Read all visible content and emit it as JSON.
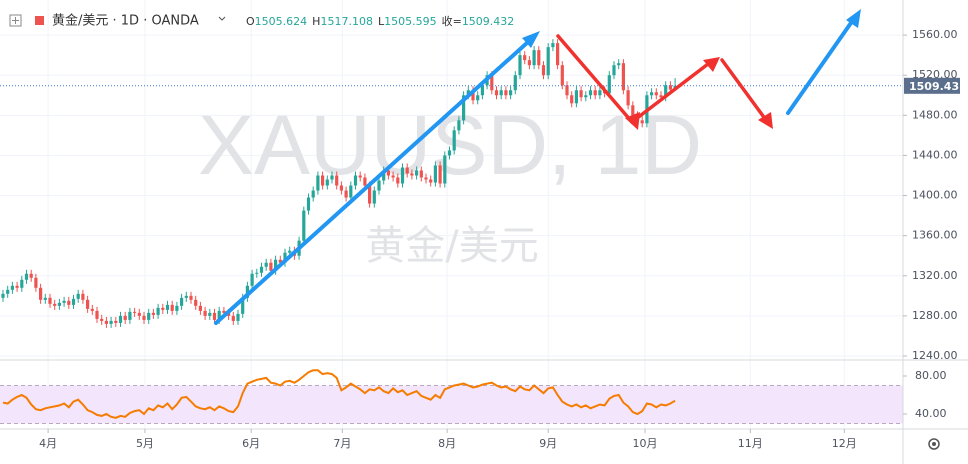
{
  "header": {
    "title": "黄金/美元 · 1D · OANDA"
  },
  "legend": {
    "open_label": "O",
    "high_label": "H",
    "low_label": "L",
    "close_label": "收="
  },
  "watermark": {
    "symbol": "XAUUSD, 1D",
    "name": "黄金/美元"
  },
  "chart_data": [
    {
      "type": "candlestick",
      "up_color": "#26a69a",
      "down_color": "#ef5350",
      "grid": true,
      "xlim": [
        -0.638,
        190.85
      ],
      "xticks": [
        {
          "value": 9.6,
          "label": "4月"
        },
        {
          "value": 30.2,
          "label": "5月"
        },
        {
          "value": 52.8,
          "label": "6月"
        },
        {
          "value": 72.2,
          "label": "7月"
        },
        {
          "value": 94.5,
          "label": "8月"
        },
        {
          "value": 116,
          "label": "9月"
        },
        {
          "value": 136.6,
          "label": "10月"
        },
        {
          "value": 159,
          "label": "11月"
        },
        {
          "value": 179,
          "label": "12月"
        }
      ],
      "ylim": [
        1238,
        1595
      ],
      "yticks": [
        {
          "value": 1240,
          "label": "1240.00"
        },
        {
          "value": 1280,
          "label": "1280.00"
        },
        {
          "value": 1320,
          "label": "1320.00"
        },
        {
          "value": 1360,
          "label": "1360.00"
        },
        {
          "value": 1400,
          "label": "1400.00"
        },
        {
          "value": 1440,
          "label": "1440.00"
        },
        {
          "value": 1480,
          "label": "1480.00"
        },
        {
          "value": 1520,
          "label": "1520.00"
        },
        {
          "value": 1560,
          "label": "1560.00"
        }
      ],
      "open": [
        1298,
        1302,
        1306,
        1310,
        1308,
        1316,
        1322,
        1318,
        1308,
        1296,
        1298,
        1292,
        1290,
        1293,
        1295,
        1291,
        1297,
        1302,
        1296,
        1287,
        1285,
        1277,
        1275,
        1272,
        1275,
        1273,
        1280,
        1276,
        1284,
        1283,
        1280,
        1276,
        1283,
        1281,
        1288,
        1286,
        1291,
        1285,
        1290,
        1298,
        1300,
        1296,
        1290,
        1285,
        1280,
        1283,
        1276,
        1285,
        1283,
        1280,
        1275,
        1282,
        1298,
        1310,
        1322,
        1323,
        1329,
        1333,
        1325,
        1336,
        1333,
        1343,
        1345,
        1340,
        1355,
        1385,
        1398,
        1405,
        1420,
        1410,
        1416,
        1420,
        1410,
        1405,
        1398,
        1410,
        1420,
        1418,
        1410,
        1392,
        1405,
        1415,
        1425,
        1420,
        1418,
        1412,
        1428,
        1422,
        1420,
        1425,
        1418,
        1416,
        1413,
        1430,
        1412,
        1440,
        1445,
        1465,
        1475,
        1500,
        1505,
        1495,
        1500,
        1510,
        1520,
        1505,
        1500,
        1505,
        1500,
        1505,
        1520,
        1540,
        1535,
        1530,
        1545,
        1530,
        1520,
        1548,
        1552,
        1530,
        1510,
        1500,
        1492,
        1505,
        1498,
        1500,
        1505,
        1500,
        1505,
        1502,
        1520,
        1530,
        1532,
        1505,
        1490,
        1480,
        1475,
        1472,
        1500,
        1503,
        1500,
        1498,
        1510,
        1505.624
      ],
      "high": [
        1306,
        1310,
        1314,
        1314,
        1320,
        1326,
        1326,
        1322,
        1312,
        1302,
        1302,
        1296,
        1297,
        1299,
        1299,
        1301,
        1306,
        1306,
        1300,
        1291,
        1289,
        1281,
        1279,
        1279,
        1279,
        1284,
        1284,
        1288,
        1288,
        1287,
        1284,
        1287,
        1287,
        1292,
        1292,
        1295,
        1295,
        1294,
        1302,
        1304,
        1304,
        1300,
        1294,
        1289,
        1287,
        1287,
        1289,
        1289,
        1287,
        1284,
        1286,
        1302,
        1314,
        1326,
        1327,
        1333,
        1337,
        1337,
        1340,
        1340,
        1347,
        1349,
        1349,
        1359,
        1389,
        1402,
        1409,
        1424,
        1424,
        1420,
        1424,
        1424,
        1414,
        1409,
        1414,
        1424,
        1424,
        1422,
        1414,
        1409,
        1419,
        1429,
        1429,
        1424,
        1422,
        1432,
        1432,
        1426,
        1429,
        1429,
        1422,
        1420,
        1434,
        1434,
        1444,
        1449,
        1469,
        1479,
        1504,
        1509,
        1509,
        1504,
        1514,
        1524,
        1524,
        1509,
        1509,
        1509,
        1509,
        1524,
        1544,
        1544,
        1539,
        1549,
        1549,
        1534,
        1552,
        1556,
        1556,
        1534,
        1514,
        1504,
        1509,
        1509,
        1504,
        1509,
        1509,
        1509,
        1509,
        1524,
        1534,
        1536,
        1536,
        1509,
        1494,
        1484,
        1479,
        1504,
        1507,
        1507,
        1504,
        1514,
        1514,
        1517.108
      ],
      "low": [
        1294,
        1298,
        1302,
        1304,
        1304,
        1312,
        1314,
        1304,
        1292,
        1292,
        1288,
        1286,
        1286,
        1289,
        1287,
        1287,
        1293,
        1292,
        1283,
        1281,
        1273,
        1271,
        1268,
        1268,
        1269,
        1269,
        1272,
        1272,
        1279,
        1276,
        1272,
        1272,
        1277,
        1277,
        1282,
        1282,
        1281,
        1281,
        1286,
        1294,
        1292,
        1286,
        1281,
        1276,
        1276,
        1272,
        1272,
        1279,
        1276,
        1271,
        1271,
        1278,
        1294,
        1306,
        1318,
        1319,
        1325,
        1321,
        1321,
        1329,
        1329,
        1339,
        1336,
        1336,
        1351,
        1381,
        1394,
        1401,
        1406,
        1406,
        1412,
        1406,
        1401,
        1394,
        1394,
        1406,
        1414,
        1406,
        1388,
        1388,
        1401,
        1411,
        1416,
        1414,
        1408,
        1408,
        1418,
        1416,
        1416,
        1414,
        1412,
        1409,
        1409,
        1408,
        1408,
        1436,
        1441,
        1461,
        1471,
        1496,
        1491,
        1491,
        1496,
        1506,
        1501,
        1496,
        1496,
        1496,
        1496,
        1501,
        1516,
        1531,
        1526,
        1526,
        1526,
        1516,
        1516,
        1544,
        1526,
        1506,
        1496,
        1488,
        1488,
        1494,
        1494,
        1496,
        1496,
        1496,
        1498,
        1498,
        1516,
        1526,
        1501,
        1486,
        1476,
        1471,
        1468,
        1468,
        1496,
        1496,
        1494,
        1494,
        1501.624,
        1505.595
      ],
      "close": [
        1302,
        1306,
        1310,
        1308,
        1316,
        1322,
        1318,
        1308,
        1296,
        1298,
        1292,
        1290,
        1293,
        1295,
        1291,
        1297,
        1302,
        1296,
        1287,
        1285,
        1277,
        1275,
        1272,
        1275,
        1273,
        1280,
        1276,
        1284,
        1283,
        1280,
        1276,
        1283,
        1281,
        1288,
        1286,
        1291,
        1285,
        1290,
        1298,
        1300,
        1296,
        1290,
        1285,
        1280,
        1283,
        1276,
        1285,
        1283,
        1280,
        1275,
        1282,
        1298,
        1310,
        1322,
        1323,
        1329,
        1333,
        1325,
        1336,
        1333,
        1343,
        1345,
        1340,
        1355,
        1385,
        1398,
        1405,
        1420,
        1410,
        1416,
        1420,
        1410,
        1405,
        1398,
        1410,
        1420,
        1418,
        1410,
        1392,
        1405,
        1415,
        1425,
        1420,
        1418,
        1412,
        1428,
        1422,
        1420,
        1425,
        1418,
        1416,
        1413,
        1430,
        1412,
        1440,
        1445,
        1465,
        1475,
        1500,
        1505,
        1495,
        1500,
        1510,
        1520,
        1505,
        1500,
        1505,
        1500,
        1505,
        1520,
        1540,
        1535,
        1530,
        1545,
        1530,
        1520,
        1548,
        1552,
        1530,
        1510,
        1500,
        1492,
        1505,
        1498,
        1500,
        1505,
        1500,
        1505,
        1502,
        1520,
        1530,
        1532,
        1505,
        1490,
        1480,
        1475,
        1472,
        1500,
        1503,
        1500,
        1498,
        1510,
        1505.624,
        1509.432
      ]
    },
    {
      "type": "line",
      "color": "#f57c00",
      "band_color": "#f3e5fb",
      "bands": [
        30,
        70
      ],
      "xlim": [
        -0.638,
        190.85
      ],
      "ylim": [
        25.26,
        94.74
      ],
      "yticks": [
        {
          "value": 40,
          "label": "40.00"
        },
        {
          "value": 80,
          "label": "80.00"
        }
      ],
      "values": [
        52,
        51,
        55,
        58,
        60,
        57,
        50,
        45,
        44,
        46,
        47,
        48,
        49,
        51,
        47,
        53,
        55,
        50,
        44,
        42,
        39,
        38,
        40,
        37,
        36,
        38,
        37,
        41,
        43,
        44,
        40,
        46,
        44,
        49,
        47,
        51,
        45,
        50,
        57,
        58,
        53,
        48,
        46,
        45,
        47,
        44,
        48,
        46,
        43,
        42,
        48,
        62,
        72,
        74,
        76,
        77,
        78,
        73,
        72,
        70,
        74,
        75,
        73,
        76,
        80,
        84,
        86,
        86,
        82,
        83,
        82,
        78,
        65,
        68,
        72,
        69,
        66,
        62,
        66,
        65,
        68,
        64,
        62,
        67,
        63,
        65,
        60,
        62,
        64,
        59,
        57,
        55,
        60,
        57,
        66,
        68,
        70,
        71,
        72,
        70,
        68,
        69,
        71,
        72,
        73,
        70,
        68,
        69,
        66,
        64,
        69,
        66,
        65,
        70,
        66,
        62,
        67,
        68,
        60,
        53,
        50,
        48,
        50,
        47,
        49,
        46,
        48,
        50,
        49,
        56,
        59,
        60,
        52,
        48,
        42,
        40,
        43,
        51,
        50,
        47,
        50,
        49,
        51,
        54
      ]
    }
  ]
}
